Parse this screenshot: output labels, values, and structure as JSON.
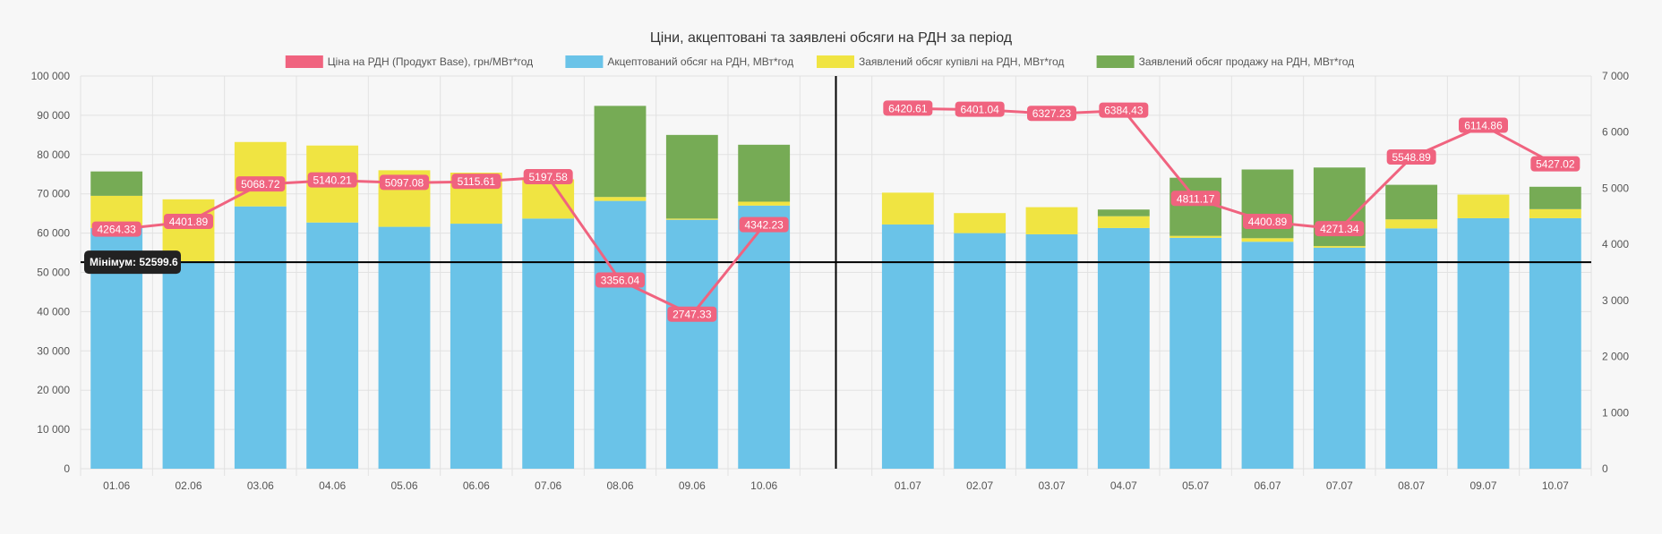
{
  "chart_data": {
    "type": "bar",
    "title": "Ціни, акцептовані та заявлені обсяги на РДН за період",
    "legend_position": "top",
    "grid": true,
    "stacked": true,
    "categories": [
      "01.06",
      "02.06",
      "03.06",
      "04.06",
      "05.06",
      "06.06",
      "07.06",
      "08.06",
      "09.06",
      "10.06",
      "",
      "01.07",
      "02.07",
      "03.07",
      "04.07",
      "05.07",
      "06.07",
      "07.07",
      "08.07",
      "09.07",
      "10.07"
    ],
    "y_left": {
      "ylim": [
        0,
        100000
      ],
      "ticks": [
        0,
        10000,
        20000,
        30000,
        40000,
        50000,
        60000,
        70000,
        80000,
        90000,
        100000
      ],
      "tick_labels": [
        "0",
        "10 000",
        "20 000",
        "30 000",
        "40 000",
        "50 000",
        "60 000",
        "70 000",
        "80 000",
        "90 000",
        "100 000"
      ]
    },
    "y_right": {
      "ylim": [
        0,
        7000
      ],
      "ticks": [
        0,
        1000,
        2000,
        3000,
        4000,
        5000,
        6000,
        7000
      ],
      "tick_labels": [
        "0",
        "1 000",
        "2 000",
        "3 000",
        "4 000",
        "5 000",
        "6 000",
        "7 000"
      ]
    },
    "series": [
      {
        "name": "Ціна на РДН (Продукт Base), грн/МВт*год",
        "kind": "line",
        "axis": "right",
        "color": "#f0637f",
        "values": [
          4264.33,
          4401.89,
          5068.72,
          5140.21,
          5097.08,
          5115.61,
          5197.58,
          3356.04,
          2747.33,
          4342.23,
          null,
          6420.61,
          6401.04,
          6327.23,
          6384.43,
          4811.17,
          4400.89,
          4271.34,
          5548.89,
          6114.86,
          5427.02
        ],
        "labels": [
          "4264.33",
          "4401.89",
          "5068.72",
          "5140.21",
          "5097.08",
          "5115.61",
          "5197.58",
          "3356.04",
          "2747.33",
          "4342.23",
          "",
          "6420.61",
          "6401.04",
          "6327.23",
          "6384.43",
          "4811.17",
          "4400.89",
          "4271.34",
          "5548.89",
          "6114.86",
          "5427.02"
        ]
      },
      {
        "name": "Акцептований обсяг на РДН, МВт*год",
        "kind": "bar",
        "axis": "left",
        "color": "#6ac3e8",
        "values": [
          61300,
          52800,
          66800,
          62700,
          61600,
          62400,
          63700,
          68200,
          63400,
          67000,
          null,
          62200,
          60000,
          59700,
          61300,
          58800,
          57800,
          56300,
          61200,
          63800,
          63800
        ]
      },
      {
        "name": "Заявлений обсяг купівлі на РДН, МВт*год",
        "kind": "bar",
        "axis": "left",
        "color": "#f0e442",
        "values": [
          8200,
          15800,
          16400,
          19600,
          14400,
          13000,
          10000,
          1000,
          300,
          1000,
          null,
          8100,
          5100,
          6900,
          3000,
          500,
          900,
          400,
          2300,
          6000,
          2300
        ]
      },
      {
        "name": "Заявлений обсяг продажу на РДН, МВт*год",
        "kind": "bar",
        "axis": "left",
        "color": "#76ab55",
        "values": [
          6200,
          0,
          0,
          0,
          0,
          0,
          0,
          23200,
          21300,
          14500,
          null,
          0,
          0,
          0,
          1700,
          14800,
          17500,
          20000,
          8800,
          0,
          5700
        ]
      }
    ],
    "annotations": {
      "vertical_line_after_category": "10.06",
      "horizontal_line_value": 52599.6,
      "horizontal_line_label": "Мінімум: 52599.6"
    }
  }
}
